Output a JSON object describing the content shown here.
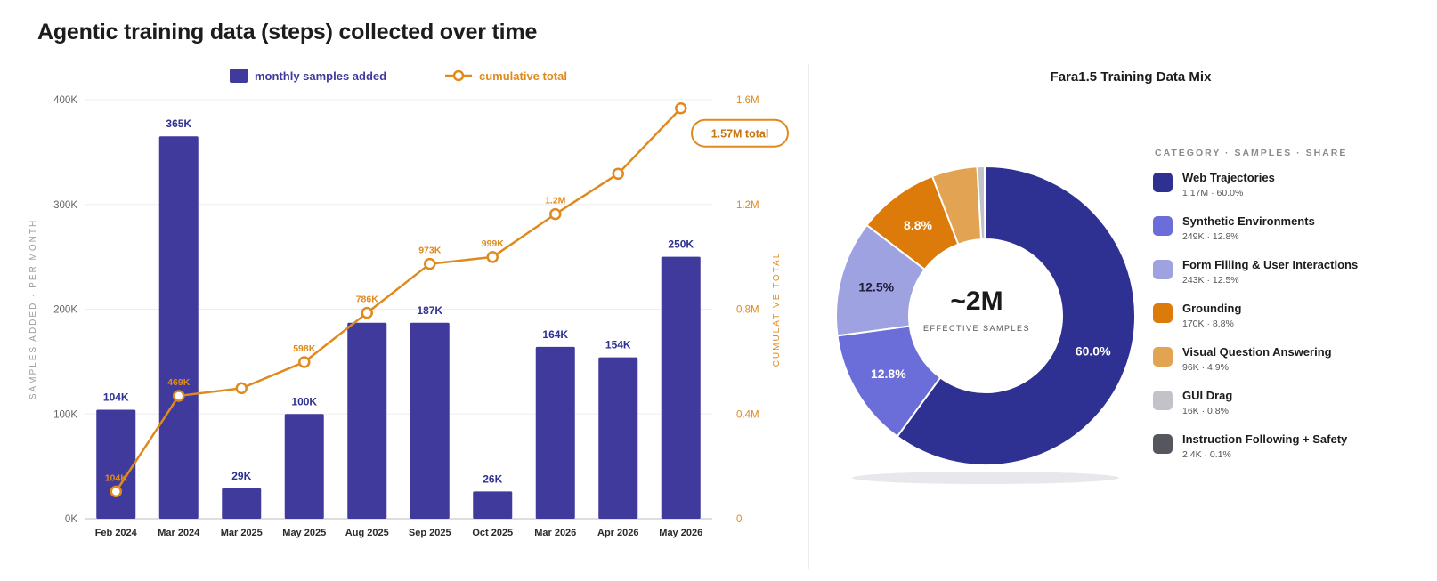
{
  "page": {
    "title": "Agentic training data (steps) collected over time"
  },
  "chart_data": [
    {
      "type": "bar",
      "title": "Agentic training data (steps) collected over time",
      "categories": [
        "Feb 2024",
        "Mar 2024",
        "Mar 2025",
        "May 2025",
        "Aug 2025",
        "Sep 2025",
        "Oct 2025",
        "Mar 2026",
        "Apr 2026",
        "May 2026"
      ],
      "series": [
        {
          "name": "monthly samples added",
          "type": "bar",
          "axis": "left",
          "color": "#3f3a9c",
          "values": [
            104,
            365,
            29,
            100,
            187,
            187,
            26,
            164,
            154,
            250
          ],
          "labels": [
            "104K",
            "365K",
            "29K",
            "100K",
            "",
            "187K",
            "26K",
            "164K",
            "154K",
            "250K"
          ]
        },
        {
          "name": "cumulative total",
          "type": "line",
          "axis": "right",
          "color": "#e08a1e",
          "values": [
            104,
            469,
            498,
            598,
            786,
            973,
            999,
            1163,
            1317,
            1567
          ],
          "labels": [
            "104K",
            "469K",
            "",
            "598K",
            "786K",
            "973K",
            "999K",
            "1.2M",
            "",
            ""
          ]
        }
      ],
      "ylabel": "SAMPLES ADDED · PER MONTH",
      "y2label": "CUMULATIVE TOTAL",
      "ylim": [
        0,
        400
      ],
      "y2lim": [
        0,
        1600
      ],
      "yticks": [
        "0K",
        "100K",
        "200K",
        "300K",
        "400K"
      ],
      "y2ticks": [
        "0",
        "0.4M",
        "0.8M",
        "1.2M",
        "1.6M"
      ],
      "annotation": "1.57M total",
      "legend_position": "top-center",
      "grid": true
    },
    {
      "type": "pie",
      "title": "Fara1.5 Training Data Mix",
      "center_value": "~2M",
      "center_label": "EFFECTIVE SAMPLES",
      "legend_header": "CATEGORY · SAMPLES · SHARE",
      "legend_position": "right",
      "slices": [
        {
          "name": "Web Trajectories",
          "share": 60.0,
          "stat": "1.17M · 60.0%",
          "label": "60.0%",
          "color": "#2e3191"
        },
        {
          "name": "Synthetic Environments",
          "share": 12.8,
          "stat": "249K · 12.8%",
          "label": "12.8%",
          "color": "#6b6dd8"
        },
        {
          "name": "Form Filling & User Interactions",
          "share": 12.5,
          "stat": "243K · 12.5%",
          "label": "12.5%",
          "color": "#9fa2e0"
        },
        {
          "name": "Grounding",
          "share": 8.8,
          "stat": "170K · 8.8%",
          "label": "8.8%",
          "color": "#dc7a0a"
        },
        {
          "name": "Visual Question Answering",
          "share": 4.9,
          "stat": "96K · 4.9%",
          "label": "",
          "color": "#e2a452"
        },
        {
          "name": "GUI Drag",
          "share": 0.8,
          "stat": "16K · 0.8%",
          "label": "",
          "color": "#c2c2c8"
        },
        {
          "name": "Instruction Following + Safety",
          "share": 0.1,
          "stat": "2.4K · 0.1%",
          "label": "",
          "color": "#55565e"
        }
      ]
    }
  ]
}
